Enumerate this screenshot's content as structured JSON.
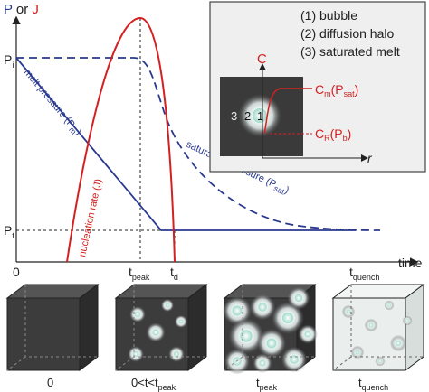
{
  "axis_label": {
    "p": "P",
    "or": "or",
    "j": "J"
  },
  "y_labels": [
    {
      "main": "P",
      "sub": "i"
    },
    {
      "main": "P",
      "sub": "f"
    }
  ],
  "x_axis_title": "time",
  "x_labels": [
    {
      "main": "0"
    },
    {
      "main": "t",
      "sub": "peak"
    },
    {
      "main": "t",
      "sub": "d"
    },
    {
      "main": "t",
      "sub": "quench"
    }
  ],
  "curve_labels": {
    "melt": {
      "main": "melt pressure (P",
      "sub": "m",
      "end": ")"
    },
    "saturation": {
      "main": "saturation pressure (P",
      "sub": "sat",
      "end": ")"
    },
    "nucleation": "nucleation rate (J)"
  },
  "inset": {
    "legend": [
      "(1) bubble",
      "(2) diffusion halo",
      "(3) saturated melt"
    ],
    "c_axis": "C",
    "r_axis": "r",
    "zones": [
      "3",
      "2",
      "1"
    ],
    "cm": {
      "main": "C",
      "sub": "m",
      "mid": "(P",
      "sub2": "sat",
      "end": ")"
    },
    "cr": {
      "main": "C",
      "sub": "R",
      "mid": "(P",
      "sub2": "b",
      "end": ")"
    }
  },
  "stages": [
    {
      "main": "0"
    },
    {
      "main": "0<t<t",
      "sub": "peak"
    },
    {
      "main": "t",
      "sub": "peak"
    },
    {
      "main": "t",
      "sub": "quench"
    }
  ]
}
